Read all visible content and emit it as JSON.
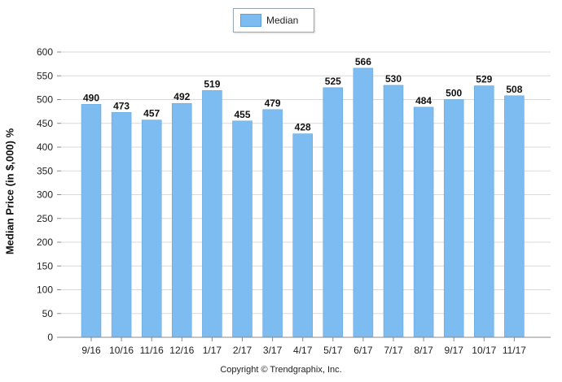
{
  "chart_data": {
    "type": "bar",
    "categories": [
      "9/16",
      "10/16",
      "11/16",
      "12/16",
      "1/17",
      "2/17",
      "3/17",
      "4/17",
      "5/17",
      "6/17",
      "7/17",
      "8/17",
      "9/17",
      "10/17",
      "11/17"
    ],
    "series": [
      {
        "name": "Median",
        "values": [
          490,
          473,
          457,
          492,
          519,
          455,
          479,
          428,
          525,
          566,
          530,
          484,
          500,
          529,
          508
        ]
      }
    ],
    "ylabel": "Median Price (in $,000) %",
    "ylim": [
      0,
      600
    ],
    "yticks": [
      0,
      50,
      100,
      150,
      200,
      250,
      300,
      350,
      400,
      450,
      500,
      550,
      600
    ],
    "grid": true,
    "legend_position": "top-center",
    "colors": {
      "bar": "#7dbcf0",
      "bar_border": "#5a9fd8",
      "grid": "#d9d9d9"
    },
    "copyright": "Copyright © Trendgraphix, Inc."
  }
}
